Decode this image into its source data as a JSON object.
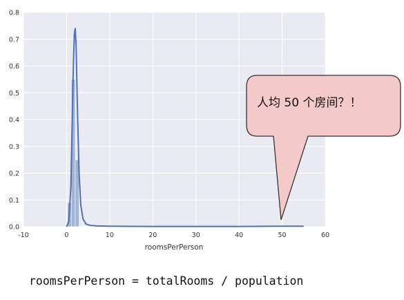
{
  "chart_data": {
    "type": "histogram",
    "xlabel": "roomsPerPerson",
    "ylabel": "",
    "xlim": [
      -10,
      60
    ],
    "ylim": [
      0,
      0.8
    ],
    "x_ticks": [
      "-10",
      "0",
      "10",
      "20",
      "30",
      "40",
      "50",
      "60"
    ],
    "y_ticks": [
      "0.0",
      "0.1",
      "0.2",
      "0.3",
      "0.4",
      "0.5",
      "0.6",
      "0.7",
      "0.8"
    ],
    "grid": true,
    "colors": {
      "bars": "#4c72b0",
      "kde": "#4c72b0",
      "background": "#eaeaf2",
      "grid": "#ffffff"
    },
    "histogram": {
      "bin_edges": [
        0.2,
        1.1,
        2.0,
        2.9,
        3.8
      ],
      "density": [
        0.09,
        0.55,
        0.25,
        0.0
      ]
    },
    "kde": {
      "x": [
        0,
        0.5,
        1.0,
        1.3,
        1.6,
        1.8,
        2.0,
        2.2,
        2.5,
        2.9,
        3.3,
        3.8,
        4.5,
        5.5,
        7,
        10,
        20,
        30,
        40,
        50,
        55
      ],
      "y": [
        0.0,
        0.02,
        0.15,
        0.4,
        0.62,
        0.72,
        0.74,
        0.68,
        0.45,
        0.2,
        0.08,
        0.03,
        0.01,
        0.005,
        0.003,
        0.002,
        0.001,
        0.001,
        0.001,
        0.002,
        0.002
      ]
    }
  },
  "callout": {
    "text": "人均 50 个房间？！",
    "fill": "#f4c9c9",
    "stroke": "#333333"
  },
  "formula": "roomsPerPerson = totalRooms / population"
}
